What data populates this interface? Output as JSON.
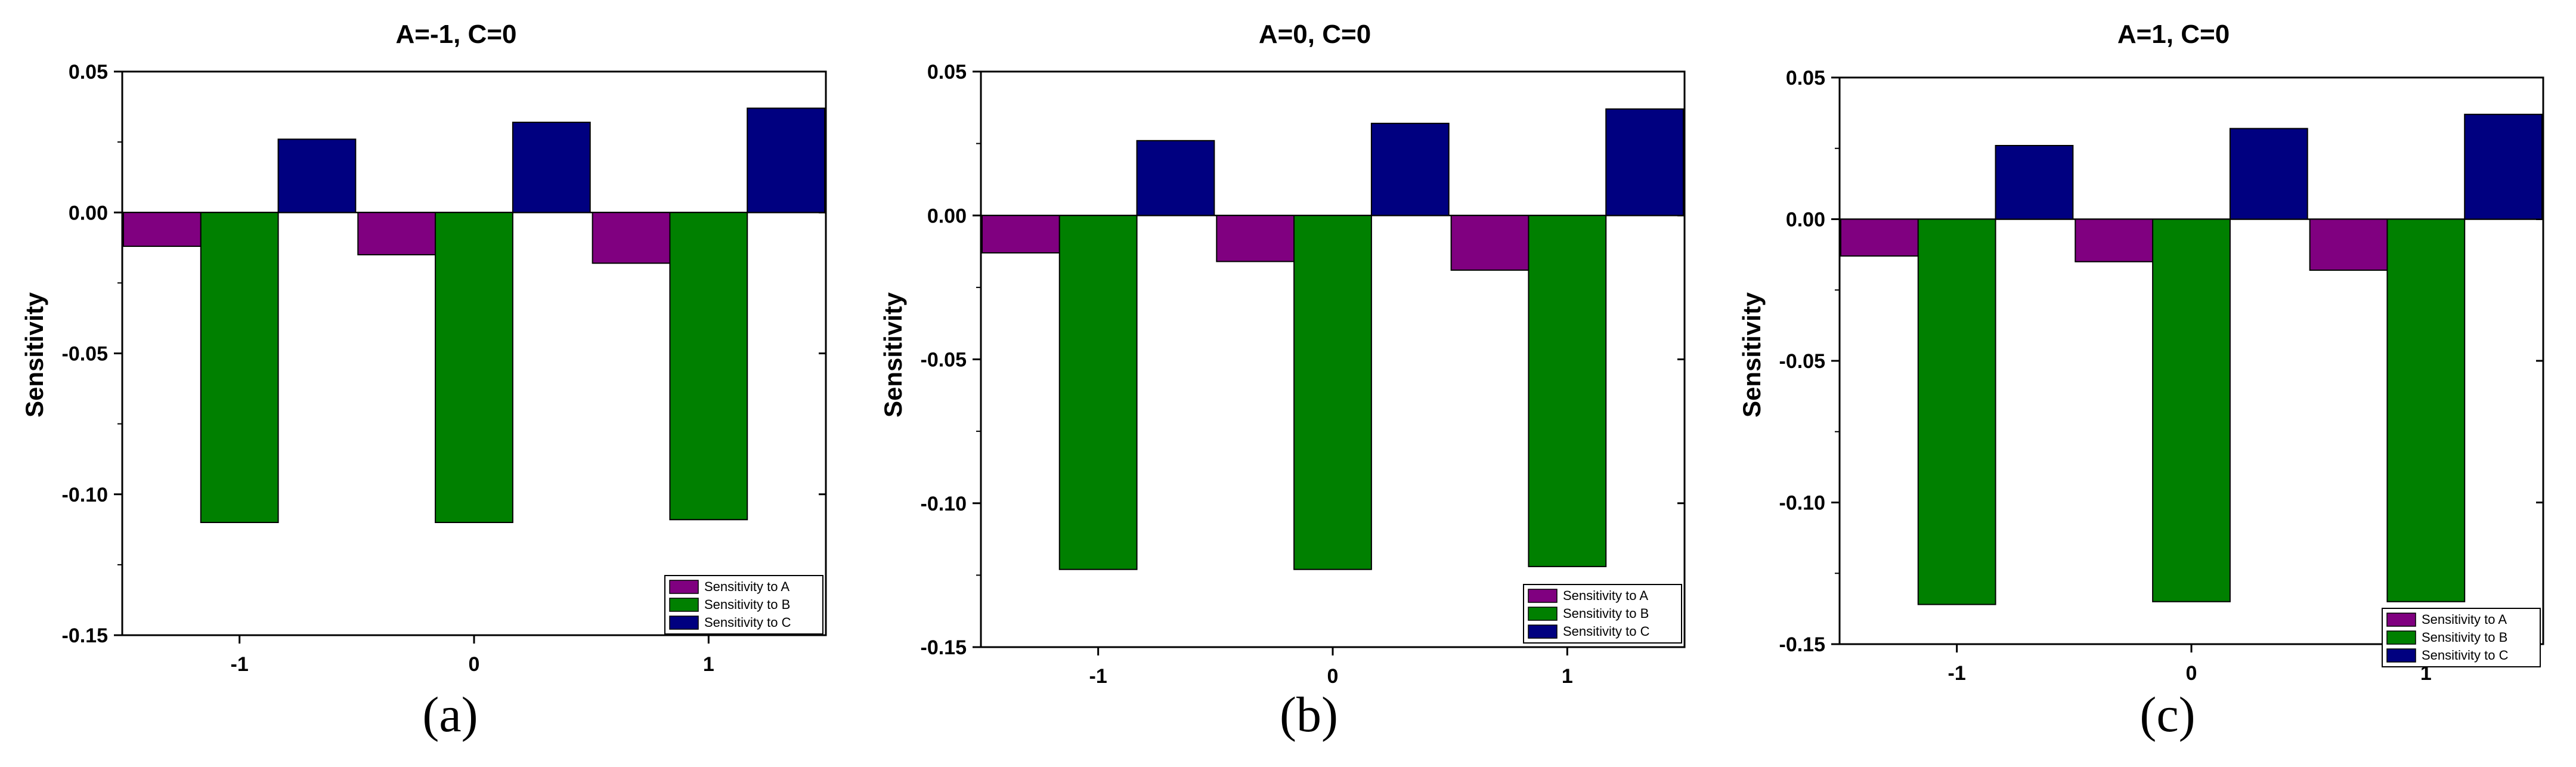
{
  "colors": {
    "sensitivity_a": "#800080",
    "sensitivity_b": "#008000",
    "sensitivity_c": "#000080"
  },
  "chart_data": [
    {
      "type": "bar",
      "title": "A=-1, C=0",
      "xlabel": "",
      "ylabel": "Sensitivity",
      "categories": [
        "-1",
        "0",
        "1"
      ],
      "yticks": [
        "0.05",
        "0.00",
        "-0.05",
        "-0.10",
        "-0.15"
      ],
      "ylim": [
        -0.15,
        0.05
      ],
      "legend_position": "bottom-right",
      "series": [
        {
          "name": "Sensitivity to A",
          "values": [
            -0.012,
            -0.015,
            -0.018
          ]
        },
        {
          "name": "Sensitivity to B",
          "values": [
            -0.11,
            -0.11,
            -0.109
          ]
        },
        {
          "name": "Sensitivity to C",
          "values": [
            0.026,
            0.032,
            0.037
          ]
        }
      ],
      "caption": "(a)"
    },
    {
      "type": "bar",
      "title": "A=0, C=0",
      "xlabel": "",
      "ylabel": "Sensitivity",
      "categories": [
        "-1",
        "0",
        "1"
      ],
      "yticks": [
        "0.05",
        "0.00",
        "-0.05",
        "-0.10",
        "-0.15"
      ],
      "ylim": [
        -0.15,
        0.05
      ],
      "legend_position": "bottom-right",
      "series": [
        {
          "name": "Sensitivity to A",
          "values": [
            -0.013,
            -0.016,
            -0.019
          ]
        },
        {
          "name": "Sensitivity to B",
          "values": [
            -0.123,
            -0.123,
            -0.122
          ]
        },
        {
          "name": "Sensitivity to C",
          "values": [
            0.026,
            0.032,
            0.037
          ]
        }
      ],
      "caption": "(b)"
    },
    {
      "type": "bar",
      "title": "A=1, C=0",
      "xlabel": "",
      "ylabel": "Sensitivity",
      "categories": [
        "-1",
        "0",
        "1"
      ],
      "yticks": [
        "0.05",
        "0.00",
        "-0.05",
        "-0.10",
        "-0.15"
      ],
      "ylim": [
        -0.15,
        0.05
      ],
      "legend_position": "bottom-right",
      "series": [
        {
          "name": "Sensitivity to A",
          "values": [
            -0.013,
            -0.015,
            -0.018
          ]
        },
        {
          "name": "Sensitivity to B",
          "values": [
            -0.136,
            -0.135,
            -0.135
          ]
        },
        {
          "name": "Sensitivity to C",
          "values": [
            0.026,
            0.032,
            0.037
          ]
        }
      ],
      "caption": "(c)"
    }
  ]
}
